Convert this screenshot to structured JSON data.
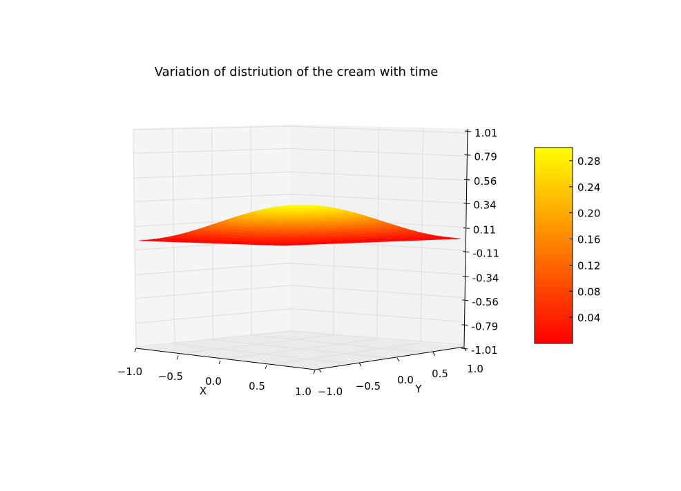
{
  "chart_data": {
    "type": "surface3d",
    "title": "Variation of distriution of the cream with time",
    "xlabel": "X",
    "ylabel": "Y",
    "zlabel": "",
    "xlim": [
      -1.0,
      1.0
    ],
    "ylim": [
      -1.0,
      1.0
    ],
    "zlim": [
      -1.01,
      1.01
    ],
    "x_ticks": [
      "−1.0",
      "−0.5",
      "0.0",
      "0.5",
      "1.0"
    ],
    "y_ticks": [
      "−1.0",
      "−0.5",
      "0.0",
      "0.5",
      "1.0"
    ],
    "z_ticks": [
      "1.01",
      "0.79",
      "0.56",
      "0.34",
      "0.11",
      "-0.11",
      "-0.34",
      "-0.56",
      "-0.79",
      "-1.01"
    ],
    "z_tick_values": [
      1.01,
      0.79,
      0.56,
      0.34,
      0.11,
      -0.11,
      -0.34,
      -0.56,
      -0.79,
      -1.01
    ],
    "surface": {
      "function": "peak * cos(pi*x/2) * cos(pi*y/2)",
      "peak": 0.3,
      "x_range": [
        -1.0,
        1.0
      ],
      "y_range": [
        -1.0,
        1.0
      ],
      "edge_value": 0.0
    },
    "colormap": "autumn",
    "colorbar": {
      "ticks": [
        "0.28",
        "0.24",
        "0.20",
        "0.16",
        "0.12",
        "0.08",
        "0.04"
      ],
      "tick_values": [
        0.28,
        0.24,
        0.2,
        0.16,
        0.12,
        0.08,
        0.04
      ],
      "range": [
        0.0,
        0.3
      ],
      "color_low": "#ff0000",
      "color_high": "#ffff00"
    },
    "grid": true,
    "pane_color": "#f2f2f2",
    "grid_color": "#e0e0e0"
  }
}
